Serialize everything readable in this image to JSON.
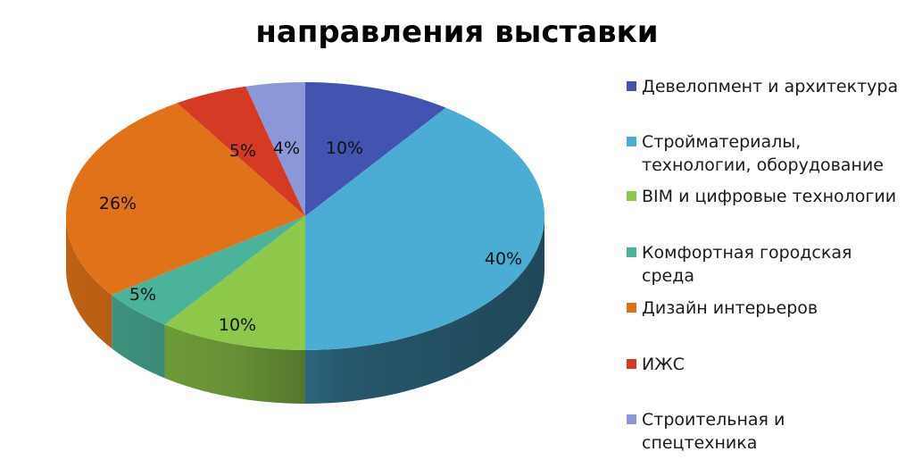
{
  "chart_data": {
    "type": "pie",
    "style": "3d-pie",
    "title": "направления выставки",
    "categories": [
      "Девелопмент и архитектура",
      "Стройматериалы, технологии, оборудование",
      "BIM и цифровые технологии",
      "Комфортная городская среда",
      "Дизайн интерьеров",
      "ИЖС",
      "Строительная и спецтехника"
    ],
    "values": [
      10,
      40,
      10,
      5,
      26,
      5,
      4
    ],
    "labels": [
      "10%",
      "40%",
      "10%",
      "5%",
      "26%",
      "5%",
      "4%"
    ],
    "colors": [
      "#4354b0",
      "#4bacd4",
      "#8dc84a",
      "#4bb39a",
      "#e07319",
      "#d43a24",
      "#8c97d8"
    ],
    "legend_position": "right",
    "start_angle": "12 o'clock",
    "direction": "clockwise"
  },
  "title": "направления выставки",
  "legend": [
    {
      "label": "Девелопмент и архитектура",
      "color": "#4354b0"
    },
    {
      "label": "Стройматериалы, технологии, оборудование",
      "color": "#4bacd4"
    },
    {
      "label": "BIM и цифровые технологии",
      "color": "#8dc84a"
    },
    {
      "label": "Комфортная городская среда",
      "color": "#4bb39a"
    },
    {
      "label": "Дизайн интерьеров",
      "color": "#e07319"
    },
    {
      "label": "ИЖС",
      "color": "#d43a24"
    },
    {
      "label": "Строительная и спецтехника",
      "color": "#8c97d8"
    }
  ]
}
